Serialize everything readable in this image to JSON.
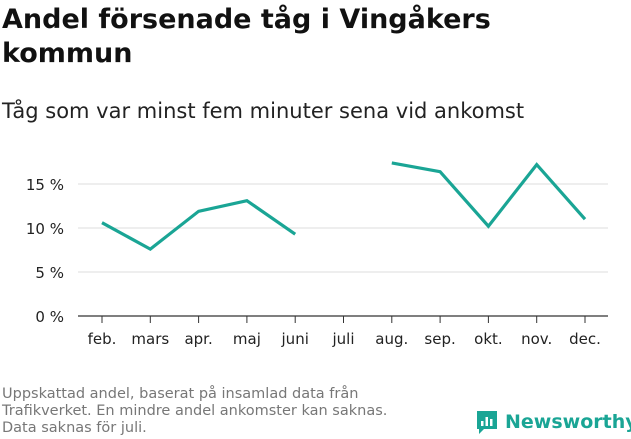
{
  "title": "Andel försenade tåg i Vingåkers kommun",
  "subtitle": "Tåg som var minst fem minuter sena vid ankomst",
  "footnote": [
    "Uppskattad andel, baserat på insamlad data från",
    "Trafikverket. En mindre andel ankomster kan saknas.",
    "Data saknas för juli."
  ],
  "brand": {
    "name": "Newsworthy",
    "color": "#1aa595"
  },
  "chart_data": {
    "type": "line",
    "categories": [
      "feb.",
      "mars",
      "apr.",
      "maj",
      "juni",
      "juli",
      "aug.",
      "sep.",
      "okt.",
      "nov.",
      "dec."
    ],
    "series": [
      {
        "values": [
          10.6,
          7.6,
          11.9,
          13.1,
          9.3,
          null,
          17.4,
          16.4,
          10.2,
          17.2,
          11.0
        ]
      }
    ],
    "ylim": [
      0,
      20
    ],
    "yticks": [
      0,
      5,
      10,
      15
    ],
    "ytick_labels": [
      "0 %",
      "5 %",
      "10 %",
      "15 %"
    ],
    "xlabel": "",
    "ylabel": "",
    "grid": true,
    "colors": {
      "line": "#1aa595",
      "grid": "#dddddd",
      "axis": "#333333"
    }
  }
}
